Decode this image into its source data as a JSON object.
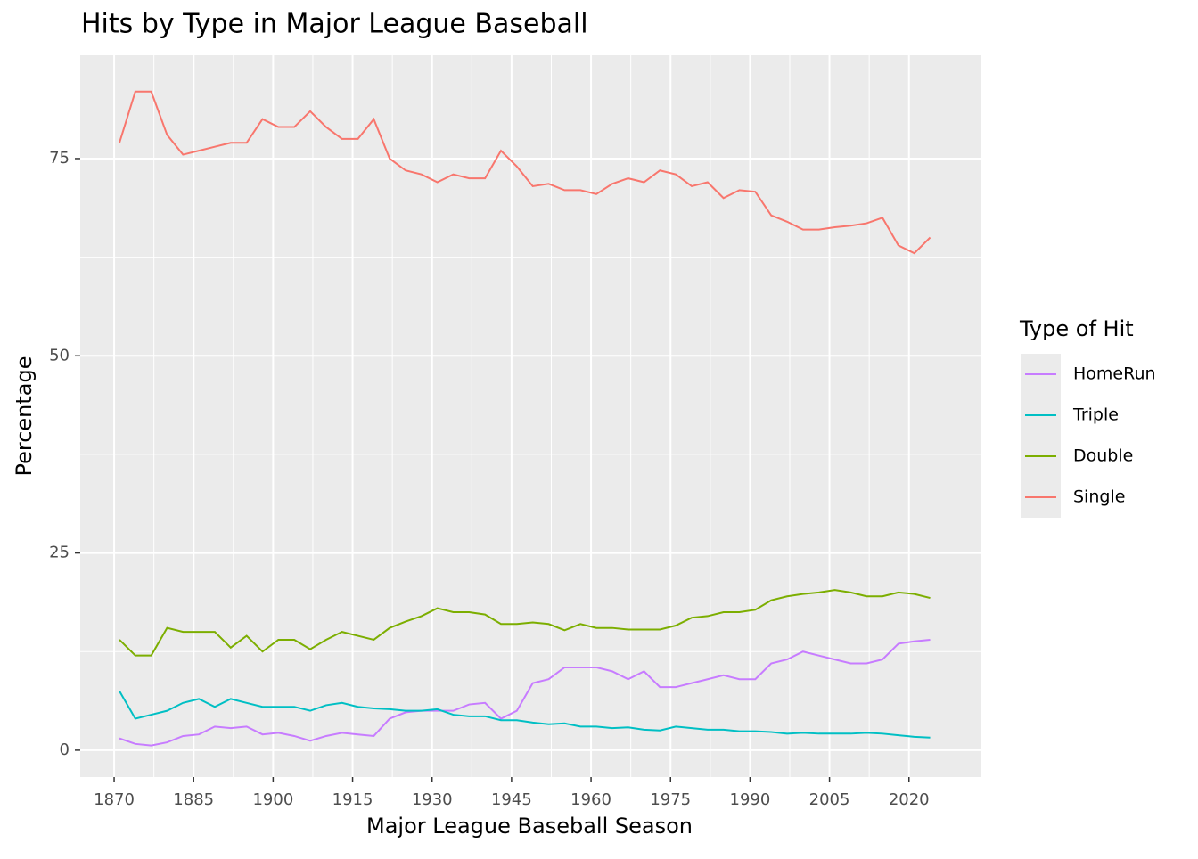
{
  "chart_data": {
    "type": "line",
    "title": "Hits by Type in Major League Baseball",
    "x_label": "Major League Baseball Season",
    "y_label": "Percentage",
    "legend_title": "Type of Hit",
    "legend_position": "right",
    "grid": true,
    "x": [
      1871,
      1874,
      1877,
      1880,
      1883,
      1886,
      1889,
      1892,
      1895,
      1898,
      1901,
      1904,
      1907,
      1910,
      1913,
      1916,
      1919,
      1922,
      1925,
      1928,
      1931,
      1934,
      1937,
      1940,
      1943,
      1946,
      1949,
      1952,
      1955,
      1958,
      1961,
      1964,
      1967,
      1970,
      1973,
      1976,
      1979,
      1982,
      1985,
      1988,
      1991,
      1994,
      1997,
      2000,
      2003,
      2006,
      2009,
      2012,
      2015,
      2018,
      2021,
      2024
    ],
    "series": [
      {
        "name": "HomeRun",
        "color": "#C77CFF",
        "values": [
          1.5,
          0.8,
          0.6,
          1,
          1.8,
          2,
          3,
          2.8,
          3,
          2,
          2.2,
          1.8,
          1.2,
          1.8,
          2.2,
          2,
          1.8,
          4,
          4.8,
          5,
          5,
          5,
          5.8,
          6,
          4,
          5,
          8.5,
          9,
          10.5,
          10.5,
          10.5,
          10,
          9,
          10,
          8,
          8,
          8.5,
          9,
          9.5,
          9,
          9,
          11,
          11.5,
          12.5,
          12,
          11.5,
          11,
          11,
          11.5,
          13.5,
          13.8,
          14
        ]
      },
      {
        "name": "Triple",
        "color": "#00BFC4",
        "values": [
          7.5,
          4,
          4.5,
          5,
          6,
          6.5,
          5.5,
          6.5,
          6,
          5.5,
          5.5,
          5.5,
          5,
          5.7,
          6,
          5.5,
          5.3,
          5.2,
          5,
          5,
          5.2,
          4.5,
          4.3,
          4.3,
          3.8,
          3.8,
          3.5,
          3.3,
          3.4,
          3,
          3,
          2.8,
          2.9,
          2.6,
          2.5,
          3,
          2.8,
          2.6,
          2.6,
          2.4,
          2.4,
          2.3,
          2.1,
          2.2,
          2.1,
          2.1,
          2.1,
          2.2,
          2.1,
          1.9,
          1.7,
          1.6
        ]
      },
      {
        "name": "Double",
        "color": "#7CAE00",
        "values": [
          14,
          12,
          12,
          15.5,
          15,
          15,
          15,
          13,
          14.5,
          12.5,
          14,
          14,
          12.8,
          14,
          15,
          14.5,
          14,
          15.5,
          16.3,
          17,
          18,
          17.5,
          17.5,
          17.2,
          16,
          16,
          16.2,
          16,
          15.2,
          16,
          15.5,
          15.5,
          15.3,
          15.3,
          15.3,
          15.8,
          16.8,
          17,
          17.5,
          17.5,
          17.8,
          19,
          19.5,
          19.8,
          20,
          20.3,
          20,
          19.5,
          19.5,
          20,
          19.8,
          19.3
        ]
      },
      {
        "name": "Single",
        "color": "#F8766D",
        "values": [
          77,
          83.5,
          83.5,
          78,
          75.5,
          76,
          76.5,
          77,
          77,
          80,
          79,
          79,
          81,
          79,
          77.5,
          77.5,
          80,
          75,
          73.5,
          73,
          72,
          73,
          72.5,
          72.5,
          76,
          74,
          71.5,
          71.8,
          71,
          71,
          70.5,
          71.8,
          72.5,
          72,
          73.5,
          73,
          71.5,
          72,
          70,
          71,
          70.8,
          67.8,
          67,
          66,
          66,
          66.3,
          66.5,
          66.8,
          67.5,
          64,
          63,
          65
        ]
      }
    ],
    "xlim": [
      1863.6,
      2033.5
    ],
    "xticks": [
      1870,
      1885,
      1900,
      1915,
      1930,
      1945,
      1960,
      1975,
      1990,
      2005,
      2020
    ],
    "ylim": [
      -3.4,
      88.1
    ],
    "yticks": [
      0,
      25,
      50,
      75
    ]
  }
}
